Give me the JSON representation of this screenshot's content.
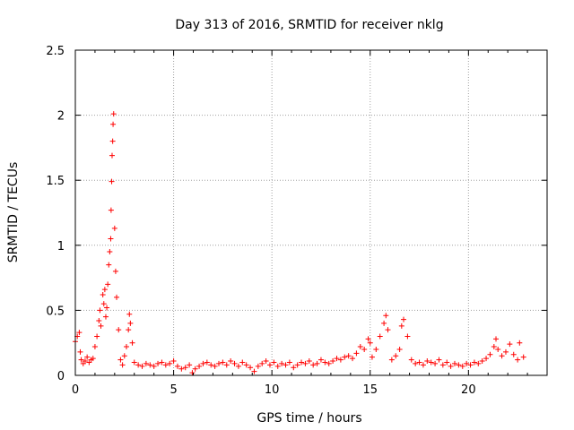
{
  "chart_data": {
    "type": "scatter",
    "title": "Day 313 of 2016, SRMTID for receiver nklg",
    "xlabel": "GPS time / hours",
    "ylabel": "SRMTID / TECUs",
    "xlim": [
      0,
      24
    ],
    "ylim": [
      0,
      2.5
    ],
    "xticks": [
      0,
      5,
      10,
      15,
      20
    ],
    "yticks": [
      0,
      0.5,
      1,
      1.5,
      2,
      2.5
    ],
    "ytick_labels": [
      "0",
      "0.5",
      "1",
      "1.5",
      "2",
      "2.5"
    ],
    "xtick_labels": [
      "0",
      "5",
      "10",
      "15",
      "20"
    ],
    "grid": true,
    "marker": "+",
    "marker_color": "#ff0000",
    "series": [
      {
        "name": "SRMTID",
        "x": [
          0.0,
          0.1,
          0.2,
          0.25,
          0.3,
          0.4,
          0.5,
          0.6,
          0.7,
          0.8,
          0.9,
          1.0,
          1.1,
          1.2,
          1.25,
          1.3,
          1.4,
          1.45,
          1.5,
          1.55,
          1.6,
          1.65,
          1.7,
          1.75,
          1.8,
          1.82,
          1.85,
          1.87,
          1.9,
          1.92,
          1.95,
          2.0,
          2.05,
          2.1,
          2.2,
          2.3,
          2.4,
          2.5,
          2.6,
          2.7,
          2.75,
          2.8,
          2.9,
          3.0,
          3.2,
          3.4,
          3.6,
          3.8,
          4.0,
          4.2,
          4.4,
          4.6,
          4.8,
          5.0,
          5.2,
          5.4,
          5.6,
          5.8,
          5.95,
          6.1,
          6.3,
          6.5,
          6.7,
          6.9,
          7.1,
          7.3,
          7.5,
          7.7,
          7.9,
          8.1,
          8.3,
          8.5,
          8.7,
          8.9,
          9.1,
          9.3,
          9.5,
          9.7,
          9.9,
          10.1,
          10.3,
          10.5,
          10.7,
          10.9,
          11.1,
          11.3,
          11.5,
          11.7,
          11.9,
          12.1,
          12.3,
          12.5,
          12.7,
          12.9,
          13.1,
          13.3,
          13.5,
          13.7,
          13.9,
          14.1,
          14.3,
          14.5,
          14.7,
          14.9,
          15.0,
          15.1,
          15.3,
          15.5,
          15.7,
          15.8,
          15.9,
          16.1,
          16.3,
          16.5,
          16.6,
          16.7,
          16.9,
          17.1,
          17.3,
          17.5,
          17.7,
          17.9,
          18.1,
          18.3,
          18.5,
          18.7,
          18.9,
          19.1,
          19.3,
          19.5,
          19.7,
          19.9,
          20.1,
          20.3,
          20.5,
          20.7,
          20.9,
          21.1,
          21.3,
          21.4,
          21.5,
          21.7,
          21.9,
          22.1,
          22.3,
          22.5,
          22.6,
          22.8
        ],
        "y": [
          0.26,
          0.3,
          0.33,
          0.18,
          0.12,
          0.09,
          0.11,
          0.14,
          0.1,
          0.12,
          0.13,
          0.22,
          0.3,
          0.42,
          0.5,
          0.38,
          0.62,
          0.55,
          0.66,
          0.45,
          0.52,
          0.7,
          0.85,
          0.95,
          1.05,
          1.27,
          1.49,
          1.69,
          1.8,
          1.93,
          2.01,
          1.13,
          0.8,
          0.6,
          0.35,
          0.12,
          0.08,
          0.15,
          0.22,
          0.35,
          0.47,
          0.4,
          0.25,
          0.1,
          0.08,
          0.07,
          0.09,
          0.08,
          0.07,
          0.09,
          0.1,
          0.08,
          0.09,
          0.11,
          0.07,
          0.05,
          0.06,
          0.08,
          0.02,
          0.05,
          0.07,
          0.09,
          0.1,
          0.08,
          0.07,
          0.09,
          0.1,
          0.08,
          0.11,
          0.09,
          0.07,
          0.1,
          0.08,
          0.06,
          0.03,
          0.07,
          0.09,
          0.11,
          0.08,
          0.1,
          0.07,
          0.09,
          0.08,
          0.1,
          0.06,
          0.08,
          0.1,
          0.09,
          0.11,
          0.08,
          0.09,
          0.12,
          0.1,
          0.09,
          0.11,
          0.13,
          0.12,
          0.14,
          0.15,
          0.13,
          0.17,
          0.22,
          0.2,
          0.28,
          0.25,
          0.14,
          0.2,
          0.3,
          0.4,
          0.46,
          0.35,
          0.12,
          0.15,
          0.2,
          0.38,
          0.43,
          0.3,
          0.12,
          0.09,
          0.1,
          0.08,
          0.11,
          0.1,
          0.09,
          0.12,
          0.08,
          0.1,
          0.07,
          0.09,
          0.08,
          0.07,
          0.09,
          0.08,
          0.1,
          0.09,
          0.11,
          0.13,
          0.16,
          0.22,
          0.28,
          0.2,
          0.15,
          0.18,
          0.24,
          0.16,
          0.12,
          0.25,
          0.14
        ]
      }
    ]
  }
}
